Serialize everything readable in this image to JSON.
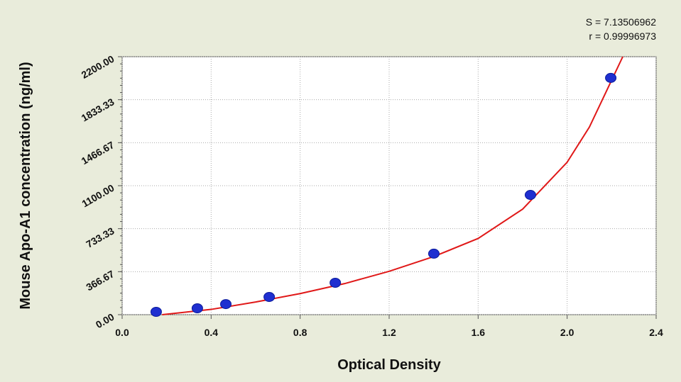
{
  "chart_data": {
    "type": "scatter",
    "x_label": "Optical Density",
    "y_label": "Mouse Apo-A1 concentration (ng/ml)",
    "annotations": [
      "S = 7.13506962",
      "r = 0.99996973"
    ],
    "xlim": [
      0,
      2.4
    ],
    "ylim": [
      0,
      2200
    ],
    "xticks": [
      {
        "value": 0,
        "label": "0.0"
      },
      0.4,
      0.8,
      1.2,
      1.6,
      {
        "value": 2,
        "label": "2.0"
      },
      2.4
    ],
    "yticks": [
      {
        "value": 0,
        "label": "0.00"
      },
      {
        "value": 366.67,
        "label": "366.67"
      },
      {
        "value": 733.33,
        "label": "733.33"
      },
      {
        "value": 1100,
        "label": "1100.00"
      },
      {
        "value": 1466.67,
        "label": "1466.67"
      },
      {
        "value": 1833.33,
        "label": "1833.33"
      },
      {
        "value": 2200,
        "label": "2200.00"
      }
    ],
    "grid": true,
    "series": [
      {
        "kind": "points",
        "color": "#1f2fd0",
        "x": [
          0.153,
          0.338,
          0.466,
          0.661,
          0.958,
          1.401,
          1.835,
          2.196
        ],
        "values": [
          0,
          30,
          66,
          127,
          248,
          496,
          997,
          1995
        ]
      },
      {
        "kind": "curve",
        "color": "#e01818",
        "x": [
          0.18,
          0.4,
          0.6,
          0.8,
          1.0,
          1.2,
          1.4,
          1.6,
          1.8,
          2.0,
          2.1,
          2.2,
          2.25
        ],
        "values": [
          0,
          45,
          108,
          180,
          265,
          370,
          495,
          650,
          900,
          1300,
          1600,
          2000,
          2200
        ]
      }
    ]
  }
}
